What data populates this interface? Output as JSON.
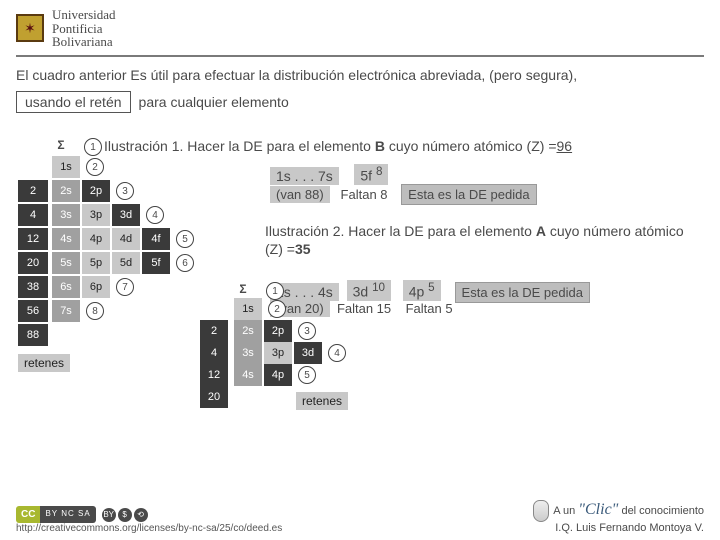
{
  "university": {
    "l1": "Universidad",
    "l2": "Pontificia",
    "l3": "Bolivariana"
  },
  "intro": {
    "line1a": "El cuadro anterior",
    "line1b": "Es útil para efectuar la distribución electrónica abreviada, (pero segura),",
    "label_reten": "usando el retén",
    "line2b": "para cualquier elemento"
  },
  "illus1": {
    "prefix": "Ilustración 1. Hacer la DE para el elemento ",
    "elem": "B",
    "mid": " cuyo número atómico (Z) =",
    "z": "96"
  },
  "de1": {
    "range": "1s . . . 7s",
    "orb": "5f",
    "exp": "8",
    "van": "(van 88)",
    "faltan": "Faltan 8",
    "msg": "Esta es la DE pedida"
  },
  "illus2": {
    "text_a": "Ilustración 2. Hacer la DE para el elemento ",
    "elem": "A",
    "text_b": " cuyo número atómico (Z) =",
    "z": "35"
  },
  "de2": {
    "r1": "1s . . . 4s",
    "o1": "3d",
    "e1": "10",
    "o2": "4p",
    "e2": "5",
    "van": "(van 20)",
    "f1": "Faltan 15",
    "f2": "Faltan 5",
    "msg": "Esta es la DE pedida"
  },
  "grid_big": {
    "sigma": "Σ",
    "left": [
      "2",
      "4",
      "12",
      "20",
      "38",
      "56",
      "88"
    ],
    "rows": [
      [
        "1s"
      ],
      [
        "2s",
        "2p"
      ],
      [
        "3s",
        "3p",
        "3d"
      ],
      [
        "4s",
        "4p",
        "4d",
        "4f"
      ],
      [
        "5s",
        "5p",
        "5d",
        "5f"
      ],
      [
        "6s",
        "6p"
      ],
      [
        "7s"
      ]
    ],
    "circles_top": [
      "1",
      "2",
      "3",
      "4",
      "5",
      "6",
      "7",
      "8"
    ],
    "retenes": "retenes"
  },
  "grid_small": {
    "sigma": "Σ",
    "left": [
      "2",
      "4",
      "12",
      "20"
    ],
    "rows": [
      [
        "1s"
      ],
      [
        "2s",
        "2p"
      ],
      [
        "3s",
        "3p",
        "3d"
      ],
      [
        "4s",
        "4p"
      ]
    ],
    "circles": [
      "1",
      "2",
      "3",
      "4",
      "5"
    ],
    "retenes": "retenes"
  },
  "footer": {
    "link": "http://creativecommons.org/licenses/by-nc-sa/25/co/deed.es",
    "tag_a": "A un ",
    "tag_clic": "\"Clic\"",
    "tag_b": " del conocimiento",
    "author": "I.Q. Luis Fernando Montoya V."
  },
  "colors": {
    "dark": "#3a3a3a",
    "mid": "#a0a0a0",
    "lite": "#c8c8c8"
  }
}
